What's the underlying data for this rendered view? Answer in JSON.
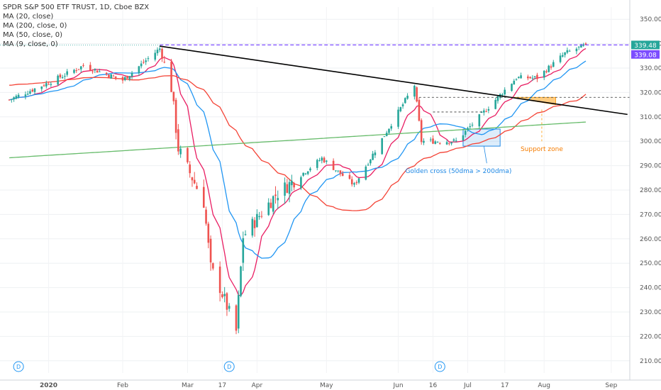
{
  "legend": {
    "title": "SPDR S&P 500 ETF TRUST, 1D, Cboe BZX",
    "ma20": "MA (20, close)",
    "ma200": "MA (200, close, 0)",
    "ma50": "MA (50, close, 0)",
    "ma9": "MA (9, close, 0)"
  },
  "badges": {
    "last_price": "339.48",
    "ma9_value": "339.08"
  },
  "annotations": {
    "golden_cross": "Golden cross (50dma > 200dma)",
    "support_zone": "Support zone",
    "dividend_marker": "D"
  },
  "colors": {
    "up": "#26a69a",
    "down": "#ef5350",
    "ma9": "#e91e63",
    "ma20": "#2196f3",
    "ma50": "#f44336",
    "ma200": "#66bb6a",
    "trendline": "#000000",
    "resistance": "#7c4dff",
    "support_fill": "#ffcc80",
    "golden_box": "#1e88e5"
  },
  "chart_data": {
    "type": "candlestick",
    "title": "SPDR S&P 500 ETF TRUST, 1D, Cboe BZX",
    "ylim": [
      205,
      355
    ],
    "y_ticks": [
      210,
      220,
      230,
      240,
      250,
      260,
      270,
      280,
      290,
      300,
      310,
      320,
      330,
      340,
      350
    ],
    "x_ticks": [
      "2020",
      "Feb",
      "Mar",
      "17",
      "Apr",
      "May",
      "Jun",
      "16",
      "Jul",
      "17",
      "Aug",
      "Sep"
    ],
    "dividend_dates": [
      "2019-12-20",
      "2020-03-20",
      "2020-06-19"
    ],
    "ohlc_anchors": [
      {
        "date": "2019-12-16",
        "close": 317
      },
      {
        "date": "2020-01-02",
        "close": 324
      },
      {
        "date": "2020-01-17",
        "close": 331
      },
      {
        "date": "2020-02-03",
        "close": 325
      },
      {
        "date": "2020-02-19",
        "close": 338
      },
      {
        "date": "2020-02-24",
        "close": 322
      },
      {
        "date": "2020-02-27",
        "close": 297
      },
      {
        "date": "2020-03-09",
        "close": 275
      },
      {
        "date": "2020-03-12",
        "close": 248
      },
      {
        "date": "2020-03-16",
        "close": 240
      },
      {
        "date": "2020-03-23",
        "close": 222
      },
      {
        "date": "2020-03-26",
        "close": 261
      },
      {
        "date": "2020-04-09",
        "close": 278
      },
      {
        "date": "2020-04-29",
        "close": 293
      },
      {
        "date": "2020-05-13",
        "close": 282
      },
      {
        "date": "2020-06-08",
        "close": 323
      },
      {
        "date": "2020-06-11",
        "close": 300
      },
      {
        "date": "2020-06-26",
        "close": 300
      },
      {
        "date": "2020-07-13",
        "close": 317
      },
      {
        "date": "2020-07-22",
        "close": 326
      },
      {
        "date": "2020-07-31",
        "close": 326
      },
      {
        "date": "2020-08-12",
        "close": 336
      },
      {
        "date": "2020-08-21",
        "close": 339.48
      }
    ],
    "series": [
      {
        "name": "MA (9, close, 0)",
        "last": 339.08
      },
      {
        "name": "MA (20, close)"
      },
      {
        "name": "MA (50, close, 0)"
      },
      {
        "name": "MA (200, close, 0)"
      }
    ],
    "lines": [
      {
        "kind": "trendline",
        "from": {
          "date": "2020-02-19",
          "value": 339
        },
        "to": {
          "date": "2020-09-08",
          "value": 311
        }
      },
      {
        "kind": "resistance",
        "value": 339.48
      },
      {
        "kind": "level",
        "value": 318
      }
    ],
    "zones": [
      {
        "kind": "golden_cross",
        "from_date": "2020-06-29",
        "to_date": "2020-07-15",
        "low": 298,
        "high": 305
      },
      {
        "kind": "support",
        "from_date": "2020-07-20",
        "to_date": "2020-08-08",
        "low": 315,
        "high": 318
      }
    ],
    "last_price": 339.48
  }
}
